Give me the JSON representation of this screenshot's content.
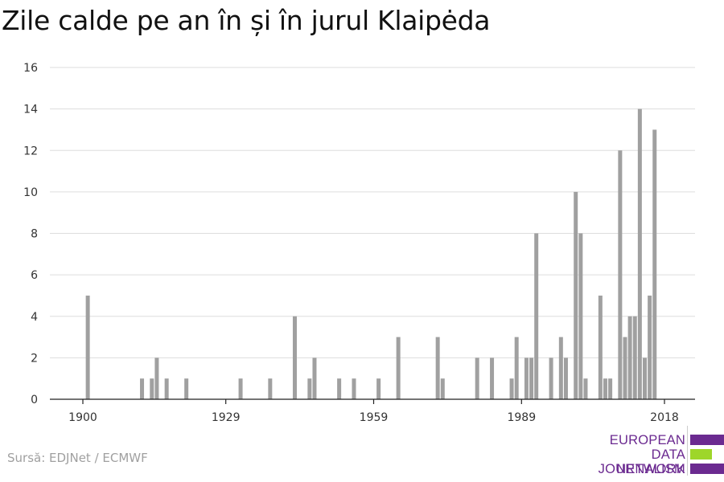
{
  "title": "Zile calde pe an în și în jurul Klaipėda",
  "source": "Sursă: EDJNet / ECMWF",
  "logo": {
    "line1": "EUROPEAN",
    "line2": "DATA JOURNALISM",
    "line3": "NETWORK",
    "colors": {
      "purple": "#6b2a90",
      "green": "#9ed62a"
    }
  },
  "chart_data": {
    "type": "bar",
    "title": "Zile calde pe an în și în jurul Klaipėda",
    "xlabel": "",
    "ylabel": "",
    "ylim": [
      0,
      16
    ],
    "xlim": [
      1900,
      2018
    ],
    "y_ticks": [
      "0",
      "2",
      "4",
      "6",
      "8",
      "10",
      "12",
      "14",
      "16"
    ],
    "x_ticks": [
      "1900",
      "1929",
      "1959",
      "1989",
      "2018"
    ],
    "grid": true,
    "bar_color": "#a0a0a0",
    "x": [
      1901,
      1912,
      1914,
      1915,
      1917,
      1921,
      1932,
      1938,
      1943,
      1946,
      1947,
      1952,
      1955,
      1960,
      1964,
      1972,
      1973,
      1980,
      1983,
      1987,
      1988,
      1990,
      1991,
      1992,
      1995,
      1997,
      1998,
      2000,
      2001,
      2002,
      2005,
      2006,
      2007,
      2009,
      2010,
      2011,
      2012,
      2013,
      2014,
      2015,
      2016,
      2017,
      2018
    ],
    "values": [
      5,
      1,
      1,
      2,
      1,
      1,
      1,
      1,
      4,
      1,
      2,
      1,
      1,
      1,
      3,
      3,
      1,
      2,
      2,
      1,
      3,
      2,
      2,
      8,
      2,
      3,
      2,
      10,
      8,
      1,
      5,
      1,
      1,
      12,
      3,
      4,
      4,
      14,
      2,
      5,
      13,
      0,
      0
    ]
  }
}
